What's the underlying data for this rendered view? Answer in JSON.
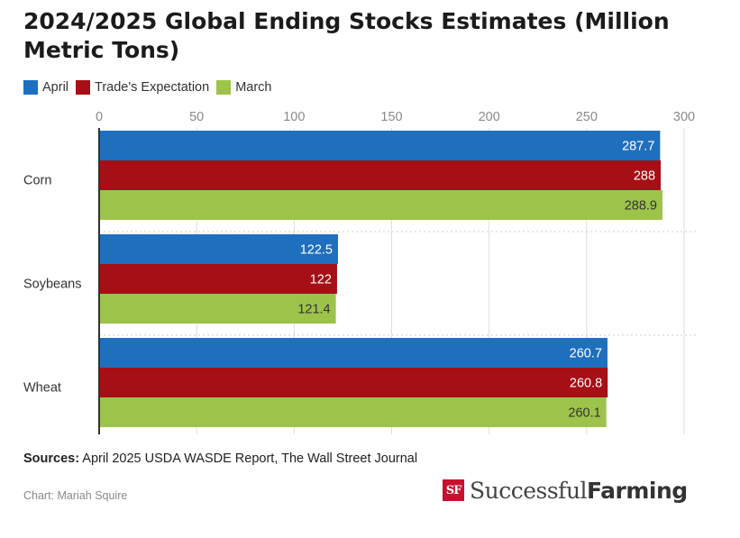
{
  "chart_data": {
    "type": "bar",
    "orientation": "horizontal",
    "title": "2024/2025 Global Ending Stocks Estimates (Million Metric Tons)",
    "categories": [
      "Corn",
      "Soybeans",
      "Wheat"
    ],
    "series": [
      {
        "name": "April",
        "color": "#1f6fbf",
        "labels": [
          "287.7",
          "122.5",
          "260.7"
        ],
        "values": [
          287.7,
          122.5,
          260.7
        ]
      },
      {
        "name": "Trade's Expectation",
        "color": "#a50f15",
        "labels": [
          "288",
          "122",
          "260.8"
        ],
        "values": [
          288,
          122,
          260.8
        ]
      },
      {
        "name": "March",
        "color": "#9dc34a",
        "labels": [
          "288.9",
          "121.4",
          "260.1"
        ],
        "values": [
          288.9,
          121.4,
          260.1
        ]
      }
    ],
    "xlim": [
      0,
      300
    ],
    "xticks": [
      "0",
      "50",
      "100",
      "150",
      "200",
      "250",
      "300"
    ],
    "xlabel": "",
    "ylabel": "",
    "grid": true,
    "legend_position": "top-left"
  },
  "footer": {
    "sources_label": "Sources:",
    "sources_text": "April 2025 USDA WASDE Report, The Wall Street Journal",
    "credit": "Chart: Mariah Squire"
  },
  "logo": {
    "mark": "SF",
    "word_regular": "Successful",
    "word_bold": "Farming"
  }
}
